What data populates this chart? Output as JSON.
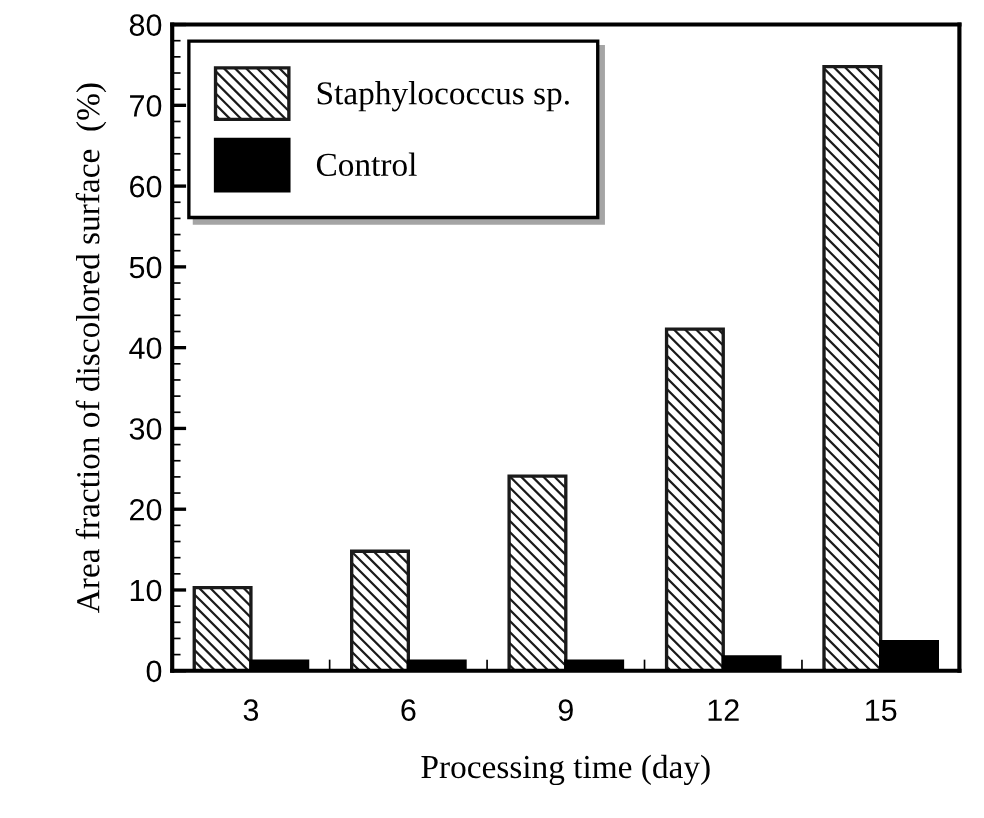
{
  "chart_data": {
    "type": "bar",
    "xlabel": "Processing time (day)",
    "ylabel": "Area fraction of discolored surface  (%)",
    "categories": [
      "3",
      "6",
      "9",
      "12",
      "15"
    ],
    "series": [
      {
        "name": "Staphylococcus sp.",
        "color": "#1a1a1a",
        "values": [
          10.3,
          14.8,
          24.1,
          42.3,
          74.8
        ]
      },
      {
        "name": "Control",
        "color": "#000000",
        "values": [
          1.2,
          1.2,
          1.2,
          1.7,
          3.6
        ]
      }
    ],
    "ylim": [
      0,
      80
    ],
    "yticks": [
      0,
      10,
      20,
      30,
      40,
      50,
      60,
      70,
      80
    ],
    "grid": false,
    "legend": "top left"
  }
}
